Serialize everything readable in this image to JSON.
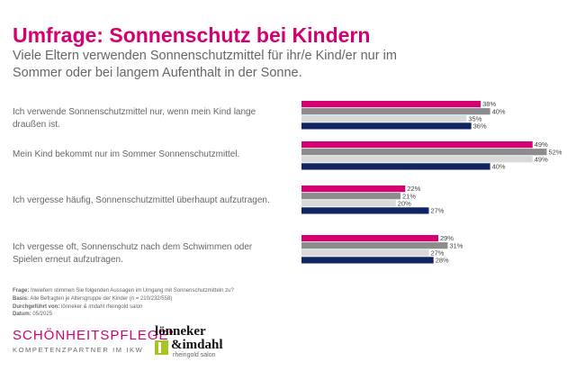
{
  "header": {
    "title": "Umfrage: Sonnenschutz bei Kindern",
    "subtitle": "Viele Eltern verwenden Sonnenschutzmittel für ihr/e Kind/er nur im Sommer oder bei langem Aufenthalt in der Sonne."
  },
  "chart_data": {
    "type": "bar",
    "orientation": "horizontal",
    "categories": [
      "Ich verwende Sonnenschutzmittel nur, wenn mein Kind lange draußen ist.",
      "Mein Kind bekommt nur im Sommer Sonnenschutzmittel.",
      "Ich vergesse häufig, Sonnenschutzmittel überhaupt aufzutragen.",
      "Ich vergesse oft, Sonnenschutz nach dem Schwimmen oder Spielen erneut aufzutragen."
    ],
    "series": [
      {
        "color": "#d4006f",
        "values": [
          38,
          49,
          22,
          29
        ]
      },
      {
        "color": "#8c8c8c",
        "values": [
          40,
          52,
          21,
          31
        ]
      },
      {
        "color": "#d9d9d9",
        "values": [
          35,
          49,
          20,
          27
        ]
      },
      {
        "color": "#0f2461",
        "values": [
          36,
          40,
          27,
          28
        ]
      }
    ],
    "value_suffix": "%",
    "xlim": [
      0,
      56
    ],
    "grid": false,
    "legend": "none"
  },
  "notes": {
    "frage_label": "Frage:",
    "frage": "Inwiefern stimmen Sie folgenden Aussagen im Umgang mit Sonnenschutzmitteln zu?",
    "basis_label": "Basis:",
    "basis": "Alle Befragten je Altersgruppe der Kinder (n = 210/232/558)",
    "durch_label": "Durchgeführt von:",
    "durch": "lönneker & imdahl rheingold salon",
    "datum_label": "Datum:",
    "datum": "05/2025"
  },
  "logos": {
    "ikw_line1": "SCHÖNHEITSPFLEGE\"",
    "ikw_line2": "KOMPETENZPARTNER IM IKW",
    "li_line1": "lönneker",
    "li_line2": "&imdahl",
    "li_line3": "rheingold salon"
  }
}
